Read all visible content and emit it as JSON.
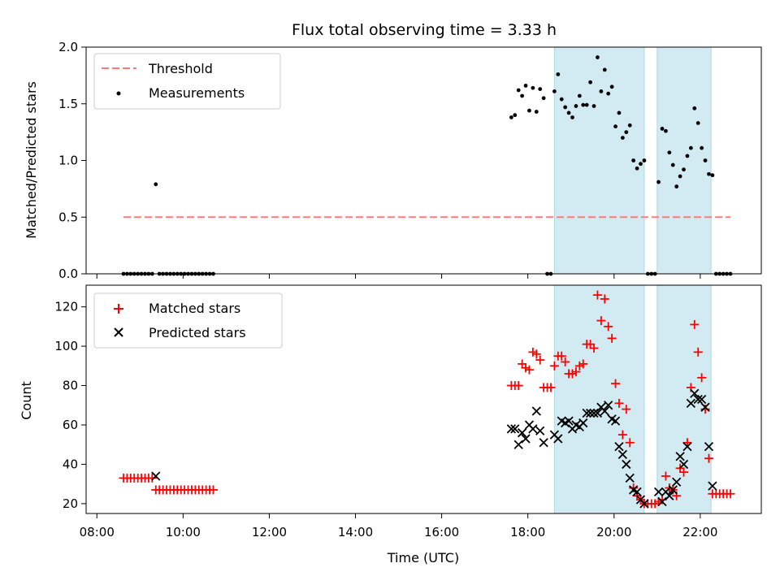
{
  "chart_data": [
    {
      "type": "scatter",
      "title": "Flux total observing time = 3.33 h",
      "ylabel": "Matched/Predicted stars",
      "xlabel": "",
      "xlim": [
        "07:45",
        "23:25"
      ],
      "ylim": [
        0,
        2.0
      ],
      "yticks": [
        "0.0",
        "0.5",
        "1.0",
        "1.5",
        "2.0"
      ],
      "xticks": [],
      "legend": {
        "position": "top-left",
        "entries": [
          "Threshold",
          "Measurements"
        ]
      },
      "threshold": {
        "name": "Threshold",
        "value": 0.5,
        "x_range": [
          "08:37",
          "22:42"
        ],
        "color": "#ff7b7b"
      },
      "shaded_intervals": [
        [
          "18:37",
          "20:42"
        ],
        [
          "21:00",
          "22:15"
        ]
      ],
      "shade_color": "#add8e6",
      "series": [
        {
          "name": "Measurements",
          "color": "#000000",
          "points": [
            [
              "08:37",
              0
            ],
            [
              "08:42",
              0
            ],
            [
              "08:47",
              0
            ],
            [
              "08:52",
              0
            ],
            [
              "08:57",
              0
            ],
            [
              "09:02",
              0
            ],
            [
              "09:07",
              0
            ],
            [
              "09:12",
              0
            ],
            [
              "09:17",
              0
            ],
            [
              "09:22",
              0.79
            ],
            [
              "09:27",
              0
            ],
            [
              "09:32",
              0
            ],
            [
              "09:37",
              0
            ],
            [
              "09:42",
              0
            ],
            [
              "09:47",
              0
            ],
            [
              "09:52",
              0
            ],
            [
              "09:57",
              0
            ],
            [
              "10:02",
              0
            ],
            [
              "10:07",
              0
            ],
            [
              "10:12",
              0
            ],
            [
              "10:17",
              0
            ],
            [
              "10:22",
              0
            ],
            [
              "10:27",
              0
            ],
            [
              "10:32",
              0
            ],
            [
              "10:37",
              0
            ],
            [
              "10:42",
              0
            ],
            [
              "17:37",
              1.38
            ],
            [
              "17:42",
              1.4
            ],
            [
              "17:47",
              1.62
            ],
            [
              "17:52",
              1.57
            ],
            [
              "17:57",
              1.66
            ],
            [
              "18:02",
              1.44
            ],
            [
              "18:07",
              1.64
            ],
            [
              "18:12",
              1.43
            ],
            [
              "18:17",
              1.63
            ],
            [
              "18:22",
              1.55
            ],
            [
              "18:27",
              0
            ],
            [
              "18:32",
              0
            ],
            [
              "18:37",
              1.61
            ],
            [
              "18:42",
              1.76
            ],
            [
              "18:47",
              1.54
            ],
            [
              "18:52",
              1.47
            ],
            [
              "18:57",
              1.42
            ],
            [
              "19:02",
              1.38
            ],
            [
              "19:07",
              1.48
            ],
            [
              "19:12",
              1.57
            ],
            [
              "19:17",
              1.49
            ],
            [
              "19:22",
              1.49
            ],
            [
              "19:27",
              1.69
            ],
            [
              "19:32",
              1.48
            ],
            [
              "19:37",
              1.91
            ],
            [
              "19:42",
              1.61
            ],
            [
              "19:47",
              1.8
            ],
            [
              "19:52",
              1.59
            ],
            [
              "19:57",
              1.65
            ],
            [
              "20:02",
              1.3
            ],
            [
              "20:07",
              1.42
            ],
            [
              "20:12",
              1.2
            ],
            [
              "20:17",
              1.25
            ],
            [
              "20:22",
              1.31
            ],
            [
              "20:27",
              1.0
            ],
            [
              "20:32",
              0.93
            ],
            [
              "20:37",
              0.97
            ],
            [
              "20:42",
              1.0
            ],
            [
              "20:47",
              0
            ],
            [
              "20:52",
              0
            ],
            [
              "20:57",
              0
            ],
            [
              "21:02",
              0.81
            ],
            [
              "21:07",
              1.28
            ],
            [
              "21:12",
              1.26
            ],
            [
              "21:17",
              1.07
            ],
            [
              "21:22",
              0.96
            ],
            [
              "21:27",
              0.77
            ],
            [
              "21:32",
              0.86
            ],
            [
              "21:37",
              0.92
            ],
            [
              "21:42",
              1.04
            ],
            [
              "21:47",
              1.11
            ],
            [
              "21:52",
              1.46
            ],
            [
              "21:57",
              1.33
            ],
            [
              "22:02",
              1.11
            ],
            [
              "22:07",
              1.0
            ],
            [
              "22:12",
              0.88
            ],
            [
              "22:17",
              0.87
            ],
            [
              "22:22",
              0
            ],
            [
              "22:27",
              0
            ],
            [
              "22:32",
              0
            ],
            [
              "22:37",
              0
            ],
            [
              "22:42",
              0
            ]
          ]
        }
      ]
    },
    {
      "type": "scatter",
      "title": "",
      "xlabel": "Time (UTC)",
      "ylabel": "Count",
      "xlim": [
        "07:45",
        "23:25"
      ],
      "ylim": [
        15,
        131
      ],
      "yticks": [
        "20",
        "40",
        "60",
        "80",
        "100",
        "120"
      ],
      "xticks": [
        "08:00",
        "10:00",
        "12:00",
        "14:00",
        "16:00",
        "18:00",
        "20:00",
        "22:00"
      ],
      "legend": {
        "position": "top-left",
        "entries": [
          "Matched stars",
          "Predicted stars"
        ]
      },
      "shaded_intervals": [
        [
          "18:37",
          "20:42"
        ],
        [
          "21:00",
          "22:15"
        ]
      ],
      "shade_color": "#add8e6",
      "series": [
        {
          "name": "Matched stars",
          "marker": "plus",
          "color": "#ff0000",
          "points": [
            [
              "08:37",
              33
            ],
            [
              "08:42",
              33
            ],
            [
              "08:47",
              33
            ],
            [
              "08:52",
              33
            ],
            [
              "08:57",
              33
            ],
            [
              "09:02",
              33
            ],
            [
              "09:07",
              33
            ],
            [
              "09:12",
              33
            ],
            [
              "09:17",
              33
            ],
            [
              "09:22",
              27
            ],
            [
              "09:27",
              27
            ],
            [
              "09:32",
              27
            ],
            [
              "09:37",
              27
            ],
            [
              "09:42",
              27
            ],
            [
              "09:47",
              27
            ],
            [
              "09:52",
              27
            ],
            [
              "09:57",
              27
            ],
            [
              "10:02",
              27
            ],
            [
              "10:07",
              27
            ],
            [
              "10:12",
              27
            ],
            [
              "10:17",
              27
            ],
            [
              "10:22",
              27
            ],
            [
              "10:27",
              27
            ],
            [
              "10:32",
              27
            ],
            [
              "10:37",
              27
            ],
            [
              "10:42",
              27
            ],
            [
              "17:37",
              80
            ],
            [
              "17:42",
              80
            ],
            [
              "17:47",
              80
            ],
            [
              "17:52",
              91
            ],
            [
              "17:57",
              89
            ],
            [
              "18:02",
              88
            ],
            [
              "18:07",
              97
            ],
            [
              "18:12",
              96
            ],
            [
              "18:17",
              93
            ],
            [
              "18:22",
              79
            ],
            [
              "18:27",
              79
            ],
            [
              "18:32",
              79
            ],
            [
              "18:37",
              90
            ],
            [
              "18:42",
              95
            ],
            [
              "18:47",
              95
            ],
            [
              "18:52",
              92
            ],
            [
              "18:57",
              86
            ],
            [
              "19:02",
              86
            ],
            [
              "19:07",
              87
            ],
            [
              "19:12",
              90
            ],
            [
              "19:17",
              91
            ],
            [
              "19:22",
              101
            ],
            [
              "19:27",
              101
            ],
            [
              "19:32",
              99
            ],
            [
              "19:37",
              126
            ],
            [
              "19:42",
              113
            ],
            [
              "19:47",
              124
            ],
            [
              "19:52",
              110
            ],
            [
              "19:57",
              104
            ],
            [
              "20:02",
              81
            ],
            [
              "20:07",
              71
            ],
            [
              "20:12",
              55
            ],
            [
              "20:17",
              68
            ],
            [
              "20:22",
              51
            ],
            [
              "20:27",
              28
            ],
            [
              "20:32",
              24
            ],
            [
              "20:37",
              22
            ],
            [
              "20:42",
              20
            ],
            [
              "20:47",
              20
            ],
            [
              "20:52",
              20
            ],
            [
              "20:57",
              20
            ],
            [
              "21:02",
              21
            ],
            [
              "21:07",
              22
            ],
            [
              "21:12",
              34
            ],
            [
              "21:17",
              28
            ],
            [
              "21:22",
              27
            ],
            [
              "21:27",
              24
            ],
            [
              "21:32",
              38
            ],
            [
              "21:37",
              36
            ],
            [
              "21:42",
              51
            ],
            [
              "21:47",
              79
            ],
            [
              "21:52",
              111
            ],
            [
              "21:57",
              97
            ],
            [
              "22:02",
              84
            ],
            [
              "22:07",
              68
            ],
            [
              "22:12",
              43
            ],
            [
              "22:17",
              25
            ],
            [
              "22:22",
              25
            ],
            [
              "22:27",
              25
            ],
            [
              "22:32",
              25
            ],
            [
              "22:37",
              25
            ],
            [
              "22:42",
              25
            ]
          ]
        },
        {
          "name": "Predicted stars",
          "marker": "x",
          "color": "#000000",
          "points": [
            [
              "09:22",
              34
            ],
            [
              "17:37",
              58
            ],
            [
              "17:42",
              58
            ],
            [
              "17:47",
              50
            ],
            [
              "17:52",
              56
            ],
            [
              "17:57",
              53
            ],
            [
              "18:02",
              60
            ],
            [
              "18:07",
              58
            ],
            [
              "18:12",
              67
            ],
            [
              "18:17",
              57
            ],
            [
              "18:22",
              51
            ],
            [
              "18:37",
              55
            ],
            [
              "18:42",
              53
            ],
            [
              "18:47",
              62
            ],
            [
              "18:52",
              61
            ],
            [
              "18:57",
              62
            ],
            [
              "19:02",
              58
            ],
            [
              "19:07",
              60
            ],
            [
              "19:12",
              59
            ],
            [
              "19:17",
              61
            ],
            [
              "19:22",
              66
            ],
            [
              "19:27",
              66
            ],
            [
              "19:32",
              66
            ],
            [
              "19:37",
              66
            ],
            [
              "19:42",
              69
            ],
            [
              "19:47",
              67
            ],
            [
              "19:52",
              70
            ],
            [
              "19:57",
              63
            ],
            [
              "20:02",
              62
            ],
            [
              "20:07",
              49
            ],
            [
              "20:12",
              45
            ],
            [
              "20:17",
              40
            ],
            [
              "20:22",
              33
            ],
            [
              "20:27",
              27
            ],
            [
              "20:32",
              26
            ],
            [
              "20:37",
              22
            ],
            [
              "20:42",
              20
            ],
            [
              "21:02",
              26
            ],
            [
              "21:07",
              21
            ],
            [
              "21:12",
              26
            ],
            [
              "21:17",
              24
            ],
            [
              "21:22",
              27
            ],
            [
              "21:27",
              31
            ],
            [
              "21:32",
              44
            ],
            [
              "21:37",
              40
            ],
            [
              "21:42",
              49
            ],
            [
              "21:47",
              71
            ],
            [
              "21:52",
              76
            ],
            [
              "21:57",
              73
            ],
            [
              "22:02",
              73
            ],
            [
              "22:07",
              69
            ],
            [
              "22:12",
              49
            ],
            [
              "22:17",
              29
            ]
          ]
        }
      ]
    }
  ]
}
